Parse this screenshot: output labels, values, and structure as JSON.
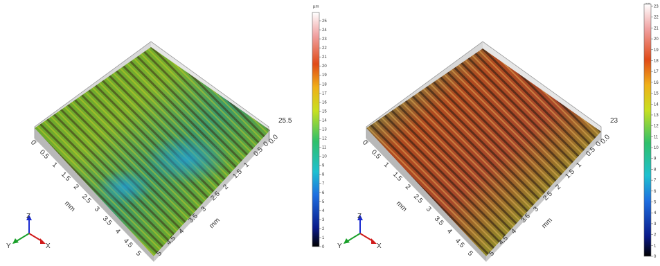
{
  "panels": [
    {
      "id": "left",
      "z_max_label": "25.5",
      "z_zero_label": "0.0",
      "axis_unit": "mm",
      "x_ticks": [
        "0",
        "0.5",
        "1",
        "1.5",
        "2",
        "2.5",
        "3",
        "3.5",
        "4",
        "4.5",
        "5"
      ],
      "y_ticks": [
        "0",
        "0.5",
        "1",
        "1.5",
        "2",
        "2.5",
        "3",
        "3.5",
        "4",
        "4.5",
        "5"
      ],
      "colorbar_unit": "µm",
      "colorbar_max": 25,
      "colorbar_ticks": [
        "25",
        "24",
        "23",
        "22",
        "21",
        "20",
        "19",
        "18",
        "17",
        "16",
        "15",
        "14",
        "13",
        "12",
        "11",
        "10",
        "9",
        "8",
        "7",
        "6",
        "5",
        "4",
        "3",
        "2",
        "1",
        "0"
      ]
    },
    {
      "id": "right",
      "z_max_label": "23",
      "z_zero_label": "0.0",
      "axis_unit": "mm",
      "x_ticks": [
        "0",
        "0.5",
        "1",
        "1.5",
        "2",
        "2.5",
        "3",
        "3.5",
        "4",
        "4.5",
        "5"
      ],
      "y_ticks": [
        "0",
        "0.5",
        "1",
        "1.5",
        "2",
        "2.5",
        "3",
        "3.5",
        "4",
        "4.5",
        "5"
      ],
      "colorbar_unit": "µm",
      "colorbar_max": 23,
      "colorbar_ticks": [
        "23",
        "22",
        "21",
        "20",
        "19",
        "18",
        "17",
        "16",
        "15",
        "14",
        "13",
        "12",
        "11",
        "10",
        "9",
        "8",
        "7",
        "6",
        "5",
        "4",
        "3",
        "2",
        "1",
        "0"
      ]
    }
  ],
  "triad": {
    "z": "Z",
    "y": "Y",
    "x": "X"
  },
  "colors": {
    "low": "#0a1a6a",
    "mid_low": "#1ea0e0",
    "mid": "#2fc06a",
    "mid_high": "#e8e020",
    "high": "#d8281a",
    "top": "#ffffff"
  }
}
